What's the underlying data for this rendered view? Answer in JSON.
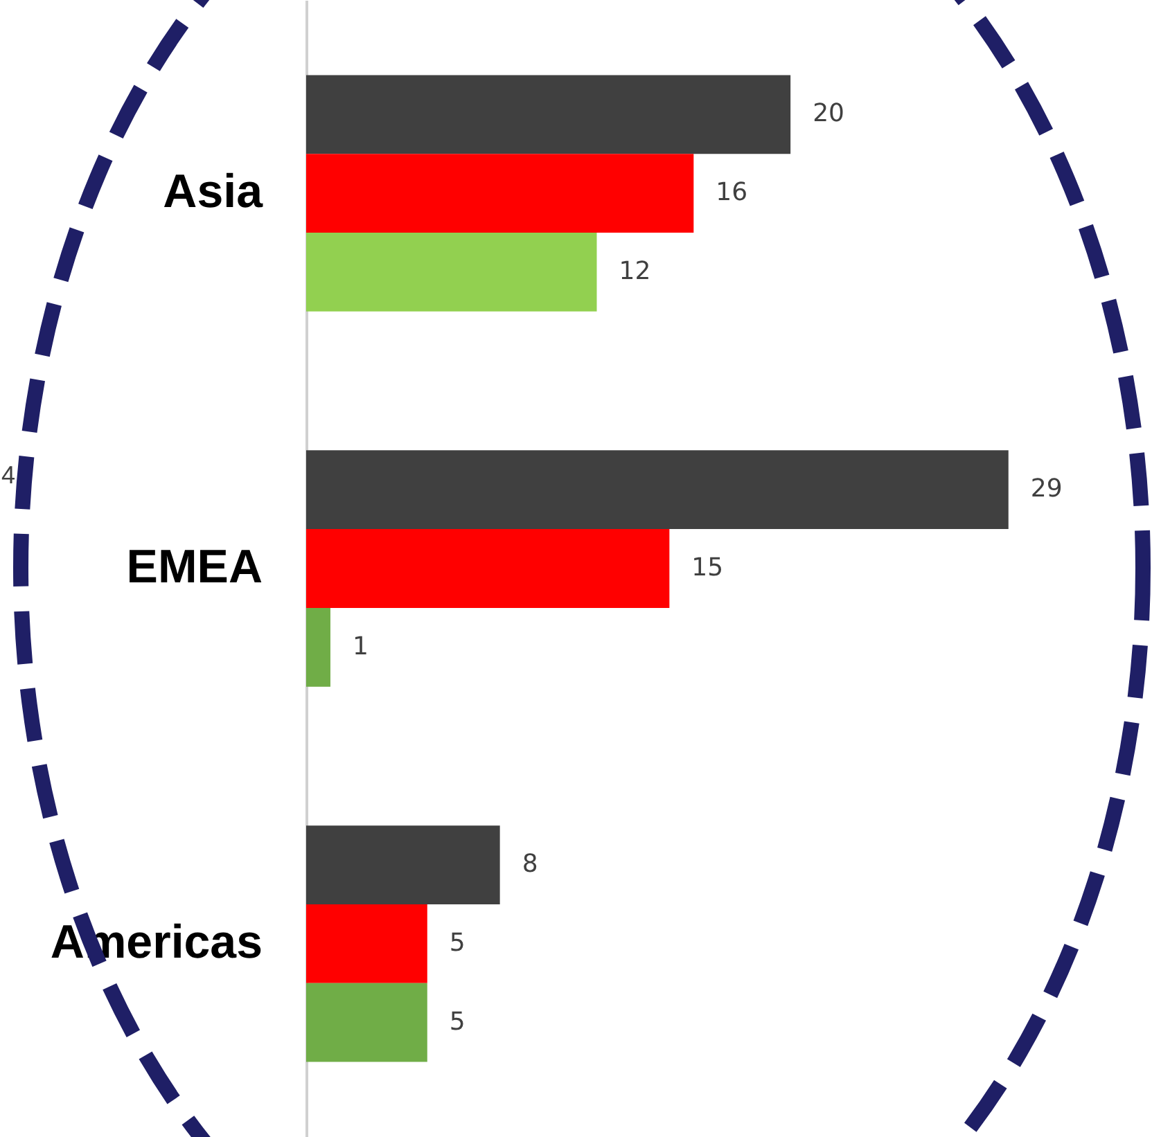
{
  "chart_data": {
    "type": "bar",
    "orientation": "horizontal",
    "categories": [
      "Asia",
      "EMEA",
      "Americas"
    ],
    "series": [
      {
        "color": "#404040",
        "values": [
          20,
          29,
          8
        ]
      },
      {
        "color": "#ff0000",
        "values": [
          16,
          15,
          5
        ]
      },
      {
        "colors": [
          "#92d050",
          "#70ad47",
          "#70ad47"
        ],
        "values": [
          12,
          1,
          5
        ]
      }
    ],
    "xlim": [
      0,
      35.3
    ],
    "data_labels": true,
    "annotations": [
      "4"
    ]
  }
}
